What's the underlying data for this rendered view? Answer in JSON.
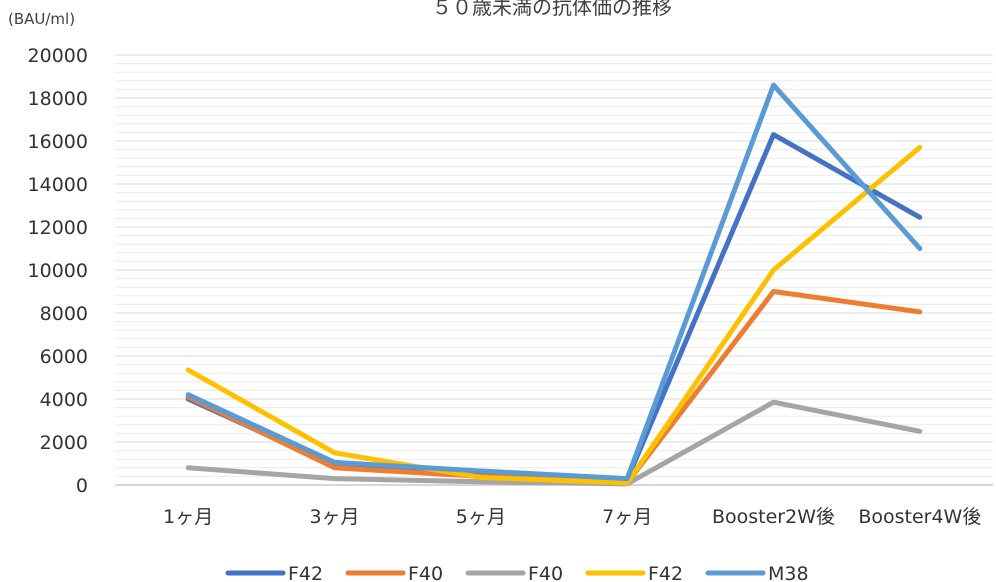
{
  "chart_data": {
    "type": "line",
    "title": "５０歳未満の抗体価の推移",
    "ylabel": "(BAU/ml)",
    "xlabel": "",
    "categories": [
      "1ヶ月",
      "3ヶ月",
      "5ヶ月",
      "7ヶ月",
      "Booster2W後",
      "Booster4W後"
    ],
    "ylim": [
      0,
      20000
    ],
    "yticks": [
      0,
      2000,
      4000,
      6000,
      8000,
      10000,
      12000,
      14000,
      16000,
      18000,
      20000
    ],
    "series": [
      {
        "name": "F42",
        "color": "#4472C4",
        "values": [
          4000,
          900,
          550,
          250,
          16300,
          12450
        ]
      },
      {
        "name": "F40",
        "color": "#ED7D31",
        "values": [
          4100,
          800,
          400,
          100,
          9000,
          8050
        ]
      },
      {
        "name": "F40",
        "color": "#A5A5A5",
        "values": [
          800,
          300,
          150,
          50,
          3850,
          2500
        ]
      },
      {
        "name": "F42",
        "color": "#FFC000",
        "values": [
          5350,
          1500,
          350,
          100,
          10000,
          15700
        ]
      },
      {
        "name": "M38",
        "color": "#5B9BD5",
        "values": [
          4200,
          1050,
          650,
          300,
          18600,
          11000
        ]
      }
    ],
    "grid": true,
    "legend": "bottom"
  }
}
